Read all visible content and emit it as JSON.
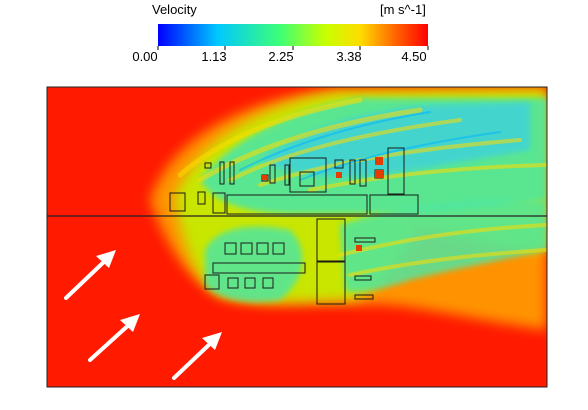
{
  "legend": {
    "title": "Velocity",
    "unit": "[m s^-1]",
    "ticks": [
      "0.00",
      "1.13",
      "2.25",
      "3.38",
      "4.50"
    ],
    "colors": [
      "#0000ff",
      "#00c8ff",
      "#3cff78",
      "#c8ff00",
      "#ffdc00",
      "#ff6400",
      "#ff0000"
    ]
  },
  "plot": {
    "background_color": "#ff1a00",
    "wind_arrows": 3,
    "arrow_color": "#ffffff",
    "obstacle_color": "#1a1a1a"
  }
}
